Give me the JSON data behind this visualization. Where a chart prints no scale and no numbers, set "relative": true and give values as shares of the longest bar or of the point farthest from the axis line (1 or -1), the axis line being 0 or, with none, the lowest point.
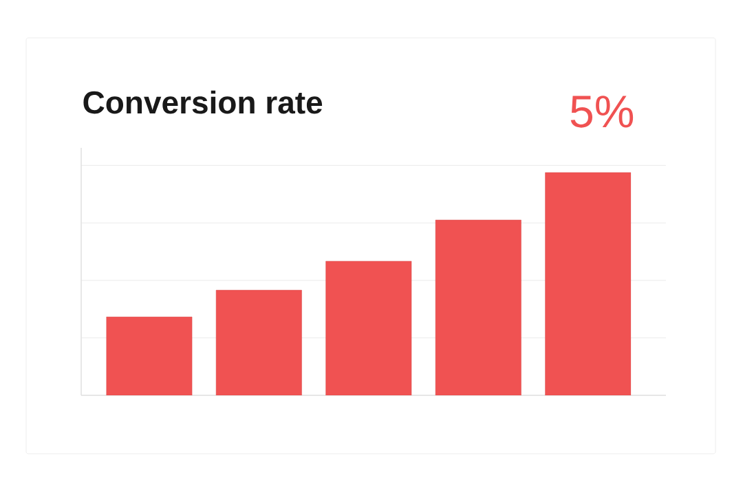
{
  "chart_data": {
    "type": "bar",
    "title": "Conversion rate",
    "annotations": [
      "5%"
    ],
    "categories": [
      null,
      null,
      null,
      null,
      null
    ],
    "values": [
      0.352,
      0.472,
      0.602,
      0.787,
      1.0
    ],
    "color": "#f05252",
    "relative": true,
    "grid": "y"
  }
}
